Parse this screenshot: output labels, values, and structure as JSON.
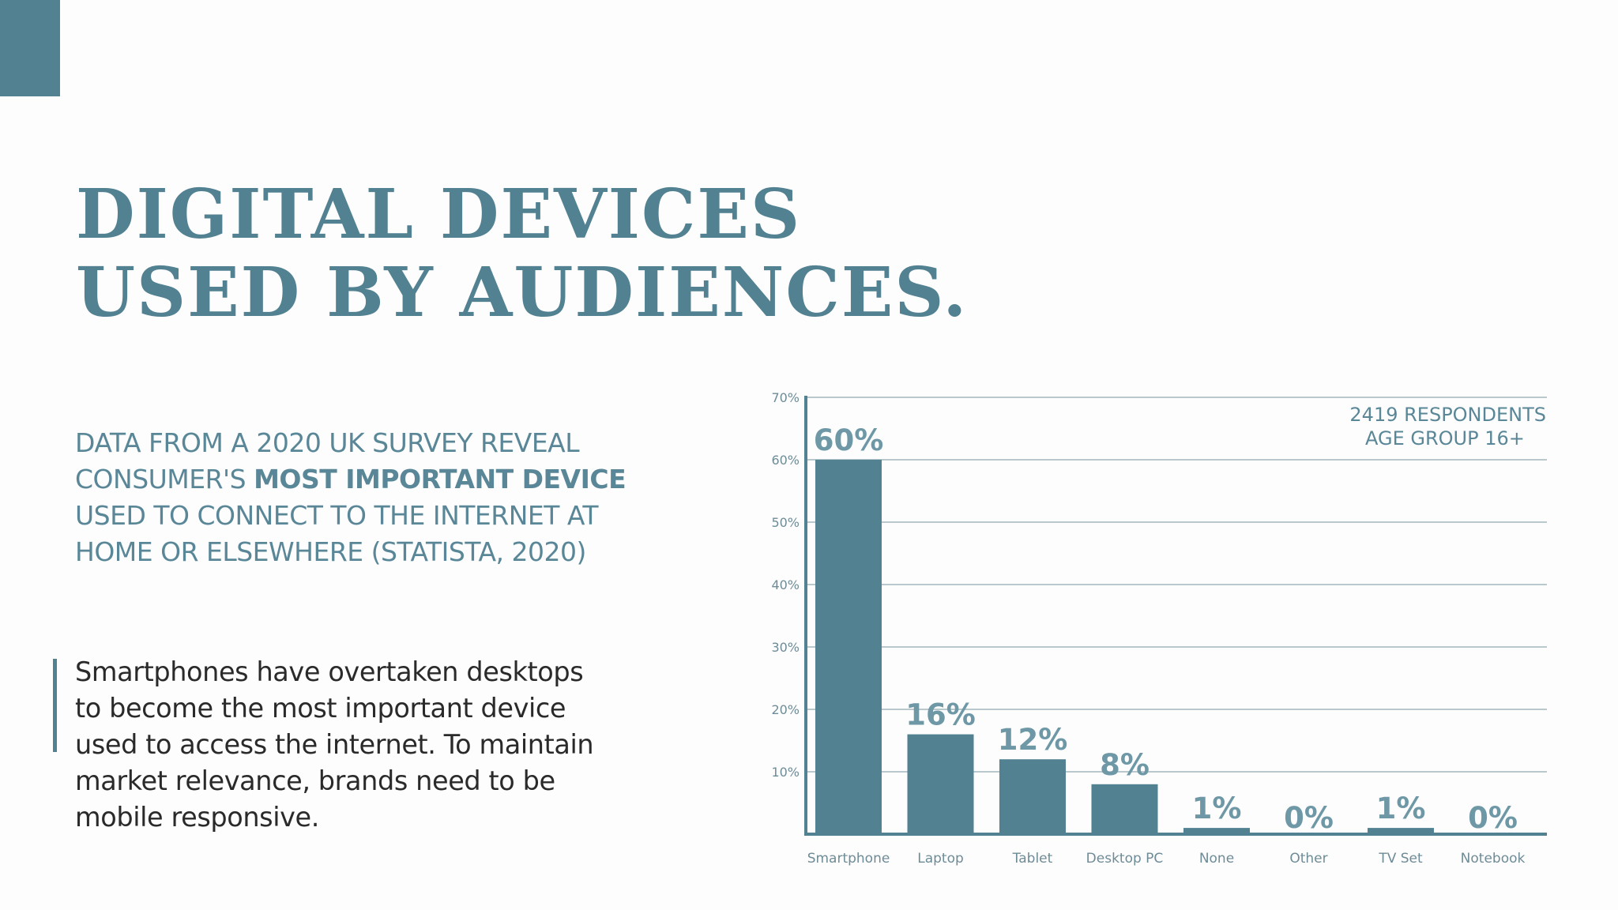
{
  "title": {
    "line1": "DIGITAL DEVICES",
    "line2": "USED BY AUDIENCES."
  },
  "subtitle": {
    "line1": "DATA FROM A 2020 UK SURVEY REVEAL",
    "line2_plain": "CONSUMER'S ",
    "line2_bold": "MOST IMPORTANT DEVICE",
    "line3": "USED TO CONNECT TO THE INTERNET AT",
    "line4": "HOME OR ELSEWHERE (STATISTA, 2020)"
  },
  "quote": {
    "line1": "Smartphones have overtaken desktops",
    "line2": "to become the most important device",
    "line3": "used to access the internet. To maintain",
    "line4": "market relevance, brands need to be",
    "line5": "mobile responsive."
  },
  "colors": {
    "accent": "#528192",
    "grid": "#b9c8cd",
    "label": "#6f98a7"
  },
  "chart_data": {
    "type": "bar",
    "categories": [
      "Smartphone",
      "Laptop",
      "Tablet",
      "Desktop PC",
      "None",
      "Other",
      "TV Set",
      "Notebook"
    ],
    "values": [
      60,
      16,
      12,
      8,
      1,
      0,
      1,
      0
    ],
    "data_labels": [
      "60%",
      "16%",
      "12%",
      "8%",
      "1%",
      "0%",
      "1%",
      "0%"
    ],
    "y_ticks": [
      "10%",
      "20%",
      "30%",
      "40%",
      "50%",
      "60%",
      "70%"
    ],
    "ylim": [
      0,
      70
    ],
    "grid": true,
    "annotation": [
      "2419 RESPONDENTS",
      "AGE GROUP 16+"
    ]
  }
}
